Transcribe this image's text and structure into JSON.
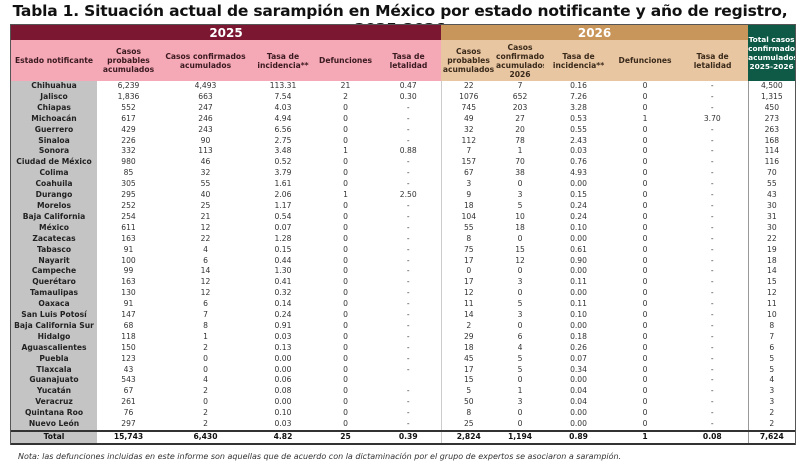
{
  "title": "Tabla 1. Situación actual de sarampión en México por estado notificante y año de registro, 2025-2026",
  "years": {
    "y2025": "2025",
    "y2026": "2026"
  },
  "headers": {
    "estado": "Estado notificante",
    "h2025": [
      "Casos probables acumulados",
      "Casos confirmados acumulados",
      "Tasa de incidencia**",
      "Defunciones",
      "Tasa de letalidad"
    ],
    "h2026": [
      "Casos probables acumulados",
      "Casos confirmados acumulados 2026",
      "Tasa de incidencia**",
      "Defunciones",
      "Tasa de letalidad"
    ],
    "total": "Total casos confirmados acumulados 2025-2026"
  },
  "rows": [
    [
      "Chihuahua",
      "6,239",
      "4,493",
      "113.31",
      "21",
      "0.47",
      "22",
      "7",
      "0.16",
      "0",
      "-",
      "4,500"
    ],
    [
      "Jalisco",
      "1,836",
      "663",
      "7.54",
      "2",
      "0.30",
      "1076",
      "652",
      "7.26",
      "0",
      "-",
      "1,315"
    ],
    [
      "Chiapas",
      "552",
      "247",
      "4.03",
      "0",
      "-",
      "745",
      "203",
      "3.28",
      "0",
      "-",
      "450"
    ],
    [
      "Michoacán",
      "617",
      "246",
      "4.94",
      "0",
      "-",
      "49",
      "27",
      "0.53",
      "1",
      "3.70",
      "273"
    ],
    [
      "Guerrero",
      "429",
      "243",
      "6.56",
      "0",
      "-",
      "32",
      "20",
      "0.55",
      "0",
      "-",
      "263"
    ],
    [
      "Sinaloa",
      "226",
      "90",
      "2.75",
      "0",
      "-",
      "112",
      "78",
      "2.43",
      "0",
      "-",
      "168"
    ],
    [
      "Sonora",
      "332",
      "113",
      "3.48",
      "1",
      "0.88",
      "7",
      "1",
      "0.03",
      "0",
      "-",
      "114"
    ],
    [
      "Ciudad de México",
      "980",
      "46",
      "0.52",
      "0",
      "-",
      "157",
      "70",
      "0.76",
      "0",
      "-",
      "116"
    ],
    [
      "Colima",
      "85",
      "32",
      "3.79",
      "0",
      "-",
      "67",
      "38",
      "4.93",
      "0",
      "-",
      "70"
    ],
    [
      "Coahuila",
      "305",
      "55",
      "1.61",
      "0",
      "-",
      "3",
      "0",
      "0.00",
      "0",
      "-",
      "55"
    ],
    [
      "Durango",
      "295",
      "40",
      "2.06",
      "1",
      "2.50",
      "9",
      "3",
      "0.15",
      "0",
      "-",
      "43"
    ],
    [
      "Morelos",
      "252",
      "25",
      "1.17",
      "0",
      "-",
      "18",
      "5",
      "0.24",
      "0",
      "-",
      "30"
    ],
    [
      "Baja California",
      "254",
      "21",
      "0.54",
      "0",
      "-",
      "104",
      "10",
      "0.24",
      "0",
      "-",
      "31"
    ],
    [
      "México",
      "611",
      "12",
      "0.07",
      "0",
      "-",
      "55",
      "18",
      "0.10",
      "0",
      "-",
      "30"
    ],
    [
      "Zacatecas",
      "163",
      "22",
      "1.28",
      "0",
      "-",
      "8",
      "0",
      "0.00",
      "0",
      "-",
      "22"
    ],
    [
      "Tabasco",
      "91",
      "4",
      "0.15",
      "0",
      "-",
      "75",
      "15",
      "0.61",
      "0",
      "-",
      "19"
    ],
    [
      "Nayarit",
      "100",
      "6",
      "0.44",
      "0",
      "-",
      "17",
      "12",
      "0.90",
      "0",
      "-",
      "18"
    ],
    [
      "Campeche",
      "99",
      "14",
      "1.30",
      "0",
      "-",
      "0",
      "0",
      "0.00",
      "0",
      "-",
      "14"
    ],
    [
      "Querétaro",
      "163",
      "12",
      "0.41",
      "0",
      "-",
      "17",
      "3",
      "0.11",
      "0",
      "-",
      "15"
    ],
    [
      "Tamaulipas",
      "130",
      "12",
      "0.32",
      "0",
      "-",
      "12",
      "0",
      "0.00",
      "0",
      "-",
      "12"
    ],
    [
      "Oaxaca",
      "91",
      "6",
      "0.14",
      "0",
      "-",
      "11",
      "5",
      "0.11",
      "0",
      "-",
      "11"
    ],
    [
      "San Luis Potosí",
      "147",
      "7",
      "0.24",
      "0",
      "-",
      "14",
      "3",
      "0.10",
      "0",
      "-",
      "10"
    ],
    [
      "Baja California Sur",
      "68",
      "8",
      "0.91",
      "0",
      "-",
      "2",
      "0",
      "0.00",
      "0",
      "-",
      "8"
    ],
    [
      "Hidalgo",
      "118",
      "1",
      "0.03",
      "0",
      "-",
      "29",
      "6",
      "0.18",
      "0",
      "-",
      "7"
    ],
    [
      "Aguascalientes",
      "150",
      "2",
      "0.13",
      "0",
      "-",
      "18",
      "4",
      "0.26",
      "0",
      "-",
      "6"
    ],
    [
      "Puebla",
      "123",
      "0",
      "0.00",
      "0",
      "-",
      "45",
      "5",
      "0.07",
      "0",
      "-",
      "5"
    ],
    [
      "Tlaxcala",
      "43",
      "0",
      "0.00",
      "0",
      "-",
      "17",
      "5",
      "0.34",
      "0",
      "-",
      "5"
    ],
    [
      "Guanajuato",
      "543",
      "4",
      "0.06",
      "0",
      "",
      "15",
      "0",
      "0.00",
      "0",
      "-",
      "4"
    ],
    [
      "Yucatán",
      "67",
      "2",
      "0.08",
      "0",
      "-",
      "5",
      "1",
      "0.04",
      "0",
      "-",
      "3"
    ],
    [
      "Veracruz",
      "261",
      "0",
      "0.00",
      "0",
      "-",
      "50",
      "3",
      "0.04",
      "0",
      "-",
      "3"
    ],
    [
      "Quintana Roo",
      "76",
      "2",
      "0.10",
      "0",
      "-",
      "8",
      "0",
      "0.00",
      "0",
      "-",
      "2"
    ],
    [
      "Nuevo León",
      "297",
      "2",
      "0.03",
      "0",
      "-",
      "25",
      "0",
      "0.00",
      "0",
      "-",
      "2"
    ]
  ],
  "total": [
    "Total",
    "15,743",
    "6,430",
    "4.82",
    "25",
    "0.39",
    "2,824",
    "1,194",
    "0.89",
    "1",
    "0.08",
    "7,624"
  ],
  "note": "Nota: las defunciones incluidas en este informe son aquellas que de acuerdo con la dictaminación por el grupo de expertos se asociaron a sarampión.",
  "colors": {
    "maroon": "#7b1730",
    "pink": "#f5a8b6",
    "tan": "#c8955a",
    "beige": "#e9c6a2",
    "green": "#0e5a46",
    "gray": "#c4c4c4"
  }
}
